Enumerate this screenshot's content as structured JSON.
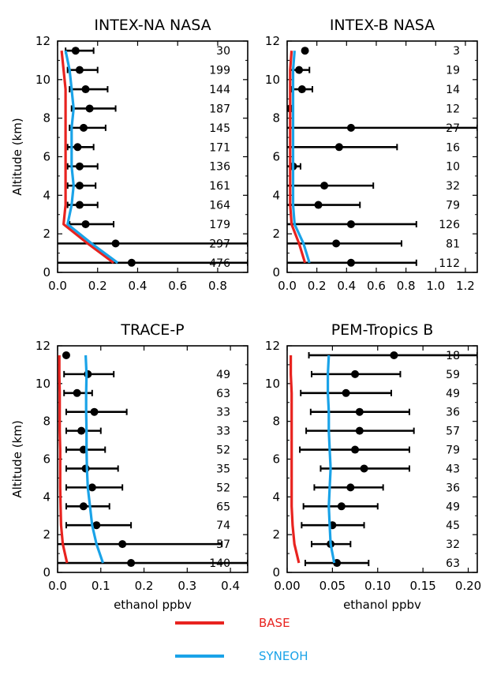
{
  "colors": {
    "base": "#e8231f",
    "syneoh": "#1aa3e8",
    "obs": "#000000"
  },
  "legend": [
    {
      "label": "BASE",
      "color": "#e8231f"
    },
    {
      "label": "SYNEOH",
      "color": "#1aa3e8"
    }
  ],
  "chart_data": [
    {
      "type": "scatter",
      "title": "INTEX-NA NASA",
      "xlabel": "",
      "ylabel": "Altitude (km)",
      "xlim": [
        0,
        0.95
      ],
      "ylim": [
        0,
        12
      ],
      "xticks": [
        "0.0",
        "0.2",
        "0.4",
        "0.6",
        "0.8"
      ],
      "xtick_values": [
        0,
        0.2,
        0.4,
        0.6,
        0.8
      ],
      "yticks": [
        "0",
        "2",
        "4",
        "6",
        "8",
        "10",
        "12"
      ],
      "points": [
        {
          "alt": 0.5,
          "mean": 0.37,
          "lo": 0.0,
          "hi": 0.95,
          "n": "476"
        },
        {
          "alt": 1.5,
          "mean": 0.29,
          "lo": 0.0,
          "hi": 0.95,
          "n": "297"
        },
        {
          "alt": 2.5,
          "mean": 0.14,
          "lo": 0.06,
          "hi": 0.28,
          "n": "179"
        },
        {
          "alt": 3.5,
          "mean": 0.11,
          "lo": 0.05,
          "hi": 0.2,
          "n": "164"
        },
        {
          "alt": 4.5,
          "mean": 0.11,
          "lo": 0.05,
          "hi": 0.19,
          "n": "161"
        },
        {
          "alt": 5.5,
          "mean": 0.11,
          "lo": 0.05,
          "hi": 0.2,
          "n": "136"
        },
        {
          "alt": 6.5,
          "mean": 0.1,
          "lo": 0.05,
          "hi": 0.18,
          "n": "171"
        },
        {
          "alt": 7.5,
          "mean": 0.13,
          "lo": 0.06,
          "hi": 0.24,
          "n": "145"
        },
        {
          "alt": 8.5,
          "mean": 0.16,
          "lo": 0.07,
          "hi": 0.29,
          "n": "187"
        },
        {
          "alt": 9.5,
          "mean": 0.14,
          "lo": 0.06,
          "hi": 0.25,
          "n": "144"
        },
        {
          "alt": 10.5,
          "mean": 0.11,
          "lo": 0.05,
          "hi": 0.2,
          "n": "199"
        },
        {
          "alt": 11.5,
          "mean": 0.09,
          "lo": 0.04,
          "hi": 0.18,
          "n": "30"
        }
      ],
      "series": [
        {
          "name": "BASE",
          "alt": [
            0.5,
            1.5,
            2.5,
            3.5,
            4.5,
            5.5,
            6.5,
            7.5,
            8.5,
            9.5,
            10.5,
            11.5
          ],
          "values": [
            0.28,
            0.15,
            0.03,
            0.04,
            0.04,
            0.04,
            0.04,
            0.04,
            0.04,
            0.04,
            0.03,
            0.02
          ]
        },
        {
          "name": "SYNEOH",
          "alt": [
            0.5,
            1.5,
            2.5,
            3.5,
            4.5,
            5.5,
            6.5,
            7.5,
            8.5,
            9.5,
            10.5,
            11.5
          ],
          "values": [
            0.3,
            0.17,
            0.05,
            0.07,
            0.08,
            0.07,
            0.07,
            0.07,
            0.08,
            0.07,
            0.06,
            0.04
          ]
        }
      ]
    },
    {
      "type": "scatter",
      "title": "INTEX-B NASA",
      "xlabel": "",
      "ylabel": "",
      "xlim": [
        0,
        1.28
      ],
      "ylim": [
        0,
        12
      ],
      "xticks": [
        "0.0",
        "0.2",
        "0.4",
        "0.6",
        "0.8",
        "1.0",
        "1.2"
      ],
      "xtick_values": [
        0,
        0.2,
        0.4,
        0.6,
        0.8,
        1.0,
        1.2
      ],
      "yticks": [
        "0",
        "2",
        "4",
        "6",
        "8",
        "10",
        "12"
      ],
      "points": [
        {
          "alt": 0.5,
          "mean": 0.43,
          "lo": 0.0,
          "hi": 0.87,
          "n": "112"
        },
        {
          "alt": 1.5,
          "mean": 0.33,
          "lo": 0.0,
          "hi": 0.77,
          "n": "81"
        },
        {
          "alt": 2.5,
          "mean": 0.43,
          "lo": 0.0,
          "hi": 0.87,
          "n": "126"
        },
        {
          "alt": 3.5,
          "mean": 0.21,
          "lo": 0.0,
          "hi": 0.49,
          "n": "79"
        },
        {
          "alt": 4.5,
          "mean": 0.25,
          "lo": 0.0,
          "hi": 0.58,
          "n": "32"
        },
        {
          "alt": 5.5,
          "mean": 0.04,
          "lo": 0.0,
          "hi": 0.09,
          "n": "10"
        },
        {
          "alt": 6.5,
          "mean": 0.35,
          "lo": 0.0,
          "hi": 0.74,
          "n": "16"
        },
        {
          "alt": 7.5,
          "mean": 0.43,
          "lo": 0.0,
          "hi": 1.28,
          "n": "27"
        },
        {
          "alt": 8.5,
          "mean": 0.02,
          "lo": 0.0,
          "hi": 0.04,
          "n": "12"
        },
        {
          "alt": 9.5,
          "mean": 0.1,
          "lo": 0.03,
          "hi": 0.17,
          "n": "14"
        },
        {
          "alt": 10.5,
          "mean": 0.08,
          "lo": 0.02,
          "hi": 0.15,
          "n": "19"
        },
        {
          "alt": 11.5,
          "mean": 0.12,
          "lo": 0.12,
          "hi": 0.12,
          "n": "3"
        }
      ],
      "series": [
        {
          "name": "BASE",
          "alt": [
            0.5,
            1.5,
            2.5,
            3.5,
            4.5,
            5.5,
            6.5,
            7.5,
            8.5,
            9.5,
            10.5,
            11.5
          ],
          "values": [
            0.12,
            0.08,
            0.03,
            0.02,
            0.02,
            0.02,
            0.02,
            0.02,
            0.02,
            0.02,
            0.02,
            0.03
          ]
        },
        {
          "name": "SYNEOH",
          "alt": [
            0.5,
            1.5,
            2.5,
            3.5,
            4.5,
            5.5,
            6.5,
            7.5,
            8.5,
            9.5,
            10.5,
            11.5
          ],
          "values": [
            0.15,
            0.11,
            0.05,
            0.04,
            0.04,
            0.04,
            0.04,
            0.04,
            0.04,
            0.04,
            0.04,
            0.05
          ]
        }
      ]
    },
    {
      "type": "scatter",
      "title": "TRACE-P",
      "xlabel": "ethanol ppbv",
      "ylabel": "Altitude (km)",
      "xlim": [
        0,
        0.44
      ],
      "ylim": [
        0,
        12
      ],
      "xticks": [
        "0.0",
        "0.1",
        "0.2",
        "0.3",
        "0.4"
      ],
      "xtick_values": [
        0,
        0.1,
        0.2,
        0.3,
        0.4
      ],
      "yticks": [
        "0",
        "2",
        "4",
        "6",
        "8",
        "10",
        "12"
      ],
      "points": [
        {
          "alt": 0.5,
          "mean": 0.17,
          "lo": 0.0,
          "hi": 0.44,
          "n": "140"
        },
        {
          "alt": 1.5,
          "mean": 0.15,
          "lo": 0.0,
          "hi": 0.38,
          "n": "57"
        },
        {
          "alt": 2.5,
          "mean": 0.09,
          "lo": 0.02,
          "hi": 0.17,
          "n": "74"
        },
        {
          "alt": 3.5,
          "mean": 0.06,
          "lo": 0.02,
          "hi": 0.12,
          "n": "65"
        },
        {
          "alt": 4.5,
          "mean": 0.08,
          "lo": 0.02,
          "hi": 0.15,
          "n": "52"
        },
        {
          "alt": 5.5,
          "mean": 0.065,
          "lo": 0.02,
          "hi": 0.14,
          "n": "35"
        },
        {
          "alt": 6.5,
          "mean": 0.06,
          "lo": 0.02,
          "hi": 0.11,
          "n": "52"
        },
        {
          "alt": 7.5,
          "mean": 0.055,
          "lo": 0.02,
          "hi": 0.1,
          "n": "33"
        },
        {
          "alt": 8.5,
          "mean": 0.085,
          "lo": 0.02,
          "hi": 0.16,
          "n": "33"
        },
        {
          "alt": 9.5,
          "mean": 0.045,
          "lo": 0.015,
          "hi": 0.08,
          "n": "63"
        },
        {
          "alt": 10.5,
          "mean": 0.07,
          "lo": 0.015,
          "hi": 0.13,
          "n": "49"
        },
        {
          "alt": 11.5,
          "mean": 0.02,
          "lo": 0.02,
          "hi": 0.02,
          "n": ""
        }
      ],
      "series": [
        {
          "name": "BASE",
          "alt": [
            0.5,
            1.5,
            2.5,
            3.5,
            4.5,
            5.5,
            6.5,
            7.5,
            8.5,
            9.5,
            10.5,
            11.5
          ],
          "values": [
            0.022,
            0.012,
            0.008,
            0.007,
            0.006,
            0.006,
            0.006,
            0.005,
            0.005,
            0.005,
            0.004,
            0.004
          ]
        },
        {
          "name": "SYNEOH",
          "alt": [
            0.5,
            1.5,
            2.5,
            3.5,
            4.5,
            5.5,
            6.5,
            7.5,
            8.5,
            9.5,
            10.5,
            11.5
          ],
          "values": [
            0.105,
            0.09,
            0.08,
            0.075,
            0.07,
            0.068,
            0.067,
            0.067,
            0.066,
            0.066,
            0.067,
            0.065
          ]
        }
      ]
    },
    {
      "type": "scatter",
      "title": "PEM-Tropics B",
      "xlabel": "ethanol ppbv",
      "ylabel": "",
      "xlim": [
        0,
        0.21
      ],
      "ylim": [
        0,
        12
      ],
      "xticks": [
        "0.00",
        "0.05",
        "0.10",
        "0.15",
        "0.20"
      ],
      "xtick_values": [
        0,
        0.05,
        0.1,
        0.15,
        0.2
      ],
      "yticks": [
        "0",
        "2",
        "4",
        "6",
        "8",
        "10",
        "12"
      ],
      "points": [
        {
          "alt": 0.5,
          "mean": 0.055,
          "lo": 0.02,
          "hi": 0.09,
          "n": "63"
        },
        {
          "alt": 1.5,
          "mean": 0.048,
          "lo": 0.027,
          "hi": 0.07,
          "n": "32"
        },
        {
          "alt": 2.5,
          "mean": 0.05,
          "lo": 0.016,
          "hi": 0.085,
          "n": "45"
        },
        {
          "alt": 3.5,
          "mean": 0.06,
          "lo": 0.018,
          "hi": 0.1,
          "n": "49"
        },
        {
          "alt": 4.5,
          "mean": 0.07,
          "lo": 0.03,
          "hi": 0.106,
          "n": "36"
        },
        {
          "alt": 5.5,
          "mean": 0.085,
          "lo": 0.037,
          "hi": 0.135,
          "n": "43"
        },
        {
          "alt": 6.5,
          "mean": 0.075,
          "lo": 0.014,
          "hi": 0.135,
          "n": "79"
        },
        {
          "alt": 7.5,
          "mean": 0.08,
          "lo": 0.021,
          "hi": 0.14,
          "n": "57"
        },
        {
          "alt": 8.5,
          "mean": 0.08,
          "lo": 0.026,
          "hi": 0.135,
          "n": "36"
        },
        {
          "alt": 9.5,
          "mean": 0.065,
          "lo": 0.015,
          "hi": 0.115,
          "n": "49"
        },
        {
          "alt": 10.5,
          "mean": 0.075,
          "lo": 0.027,
          "hi": 0.125,
          "n": "59"
        },
        {
          "alt": 11.5,
          "mean": 0.118,
          "lo": 0.024,
          "hi": 0.21,
          "n": "18"
        }
      ],
      "series": [
        {
          "name": "BASE",
          "alt": [
            0.5,
            1.5,
            2.5,
            3.5,
            4.5,
            5.5,
            6.5,
            7.5,
            8.5,
            9.5,
            10.5,
            11.5
          ],
          "values": [
            0.013,
            0.008,
            0.006,
            0.005,
            0.005,
            0.005,
            0.005,
            0.005,
            0.005,
            0.005,
            0.004,
            0.004
          ]
        },
        {
          "name": "SYNEOH",
          "alt": [
            0.5,
            1.5,
            2.5,
            3.5,
            4.5,
            5.5,
            6.5,
            7.5,
            8.5,
            9.5,
            10.5,
            11.5
          ],
          "values": [
            0.052,
            0.048,
            0.047,
            0.046,
            0.047,
            0.048,
            0.047,
            0.046,
            0.046,
            0.045,
            0.045,
            0.046
          ]
        }
      ]
    }
  ]
}
